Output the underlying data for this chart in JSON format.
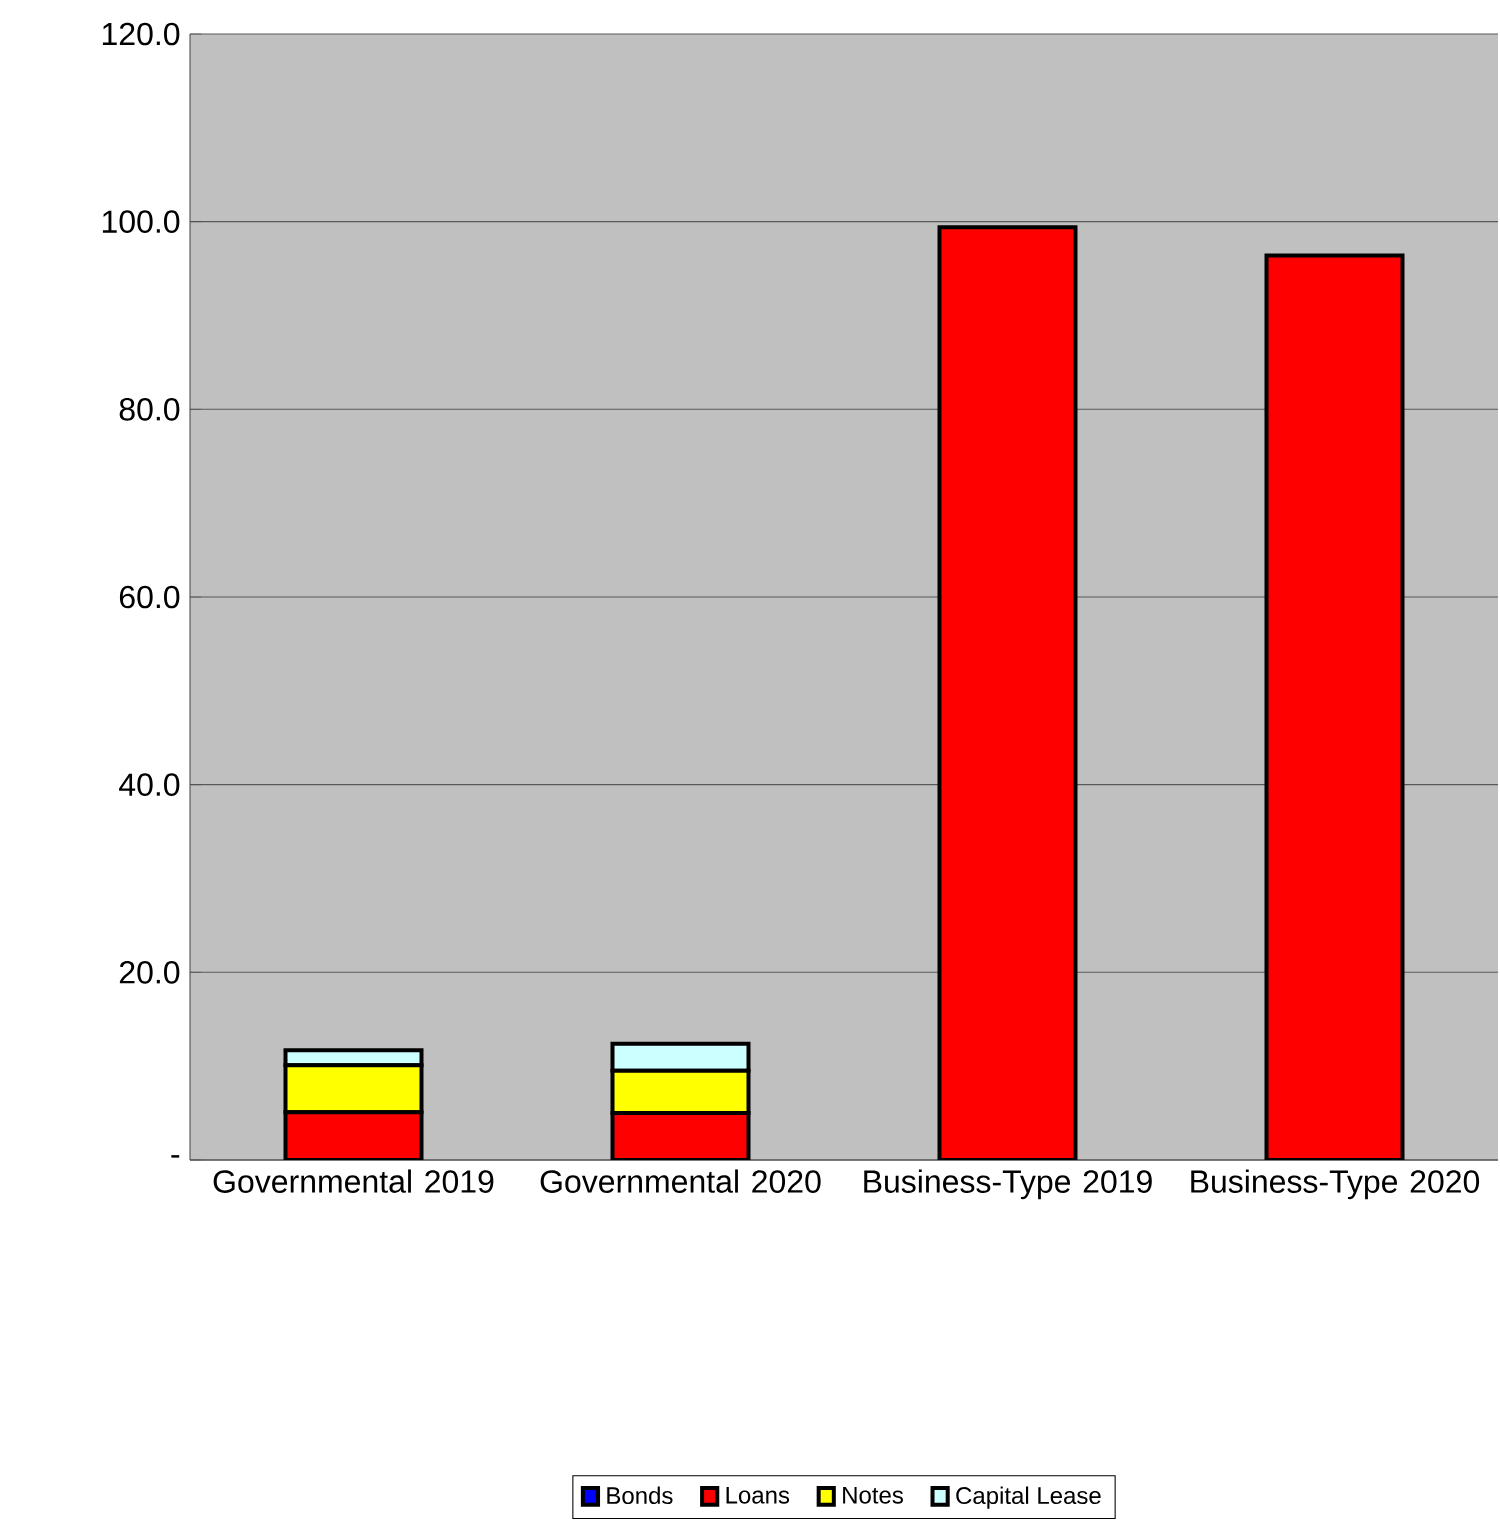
{
  "chart_data": {
    "type": "bar",
    "stacked": true,
    "categories": [
      "Governmental 2019",
      "Governmental 2020",
      "Business-Type 2019",
      "Business-Type 2020"
    ],
    "series": [
      {
        "name": "Bonds",
        "color": "#0000ff",
        "values": [
          0,
          0,
          0,
          0
        ]
      },
      {
        "name": "Loans",
        "color": "#ff0000",
        "values": [
          5.1,
          5.0,
          99.4,
          96.4
        ]
      },
      {
        "name": "Notes",
        "color": "#ffff00",
        "values": [
          5.0,
          4.5,
          0,
          0
        ]
      },
      {
        "name": "Capital Lease",
        "color": "#ccffff",
        "values": [
          1.6,
          2.9,
          0,
          0
        ]
      }
    ],
    "ylim": [
      0,
      120
    ],
    "yticks": [
      {
        "value": 0,
        "label": "-"
      },
      {
        "value": 20,
        "label": "20.0"
      },
      {
        "value": 40,
        "label": "40.0"
      },
      {
        "value": 60,
        "label": "60.0"
      },
      {
        "value": 80,
        "label": "80.0"
      },
      {
        "value": 100,
        "label": "100.0"
      },
      {
        "value": 120,
        "label": "120.0"
      }
    ],
    "grid": "y",
    "legend": "bottom"
  }
}
